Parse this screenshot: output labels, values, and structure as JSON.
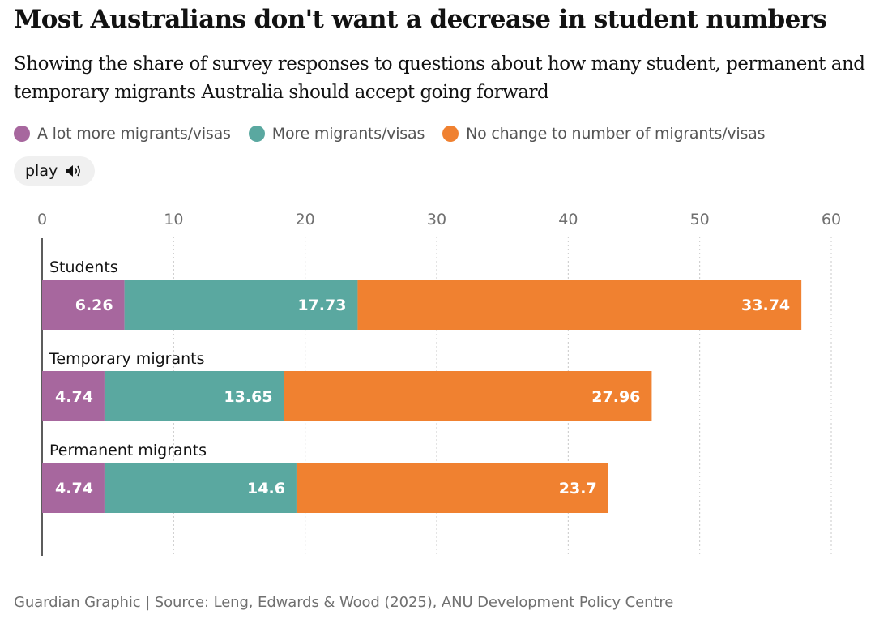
{
  "header": {
    "title": "Most Australians don't want a decrease in student numbers",
    "subtitle": "Showing the share of survey responses to questions about how many student, permanent and temporary migrants Australia should accept going forward"
  },
  "legend": [
    {
      "label": "A lot more migrants/visas",
      "color": "#a7679e"
    },
    {
      "label": "More migrants/visas",
      "color": "#5aa8a0"
    },
    {
      "label": "No change to number of migrants/visas",
      "color": "#f08130"
    }
  ],
  "controls": {
    "play_label": "play",
    "play_icon": "speaker-icon"
  },
  "chart_data": {
    "type": "bar",
    "orientation": "horizontal",
    "stacked": true,
    "categories": [
      "Students",
      "Temporary migrants",
      "Permanent migrants"
    ],
    "series": [
      {
        "name": "A lot more migrants/visas",
        "color": "#a7679e",
        "values": [
          6.26,
          4.74,
          4.74
        ]
      },
      {
        "name": "More migrants/visas",
        "color": "#5aa8a0",
        "values": [
          17.73,
          13.65,
          14.6
        ]
      },
      {
        "name": "No change to number of migrants/visas",
        "color": "#f08130",
        "values": [
          33.74,
          27.96,
          23.7
        ]
      }
    ],
    "xlim": [
      0,
      60
    ],
    "xticks": [
      0,
      10,
      20,
      30,
      40,
      50,
      60
    ],
    "tick_labels": [
      "0",
      "10",
      "20",
      "30",
      "40",
      "50",
      "60"
    ],
    "grid": true,
    "legend_position": "top",
    "axis_position": "top"
  },
  "footer": {
    "source": "Guardian Graphic | Source: Leng, Edwards & Wood (2025), ANU Development Policy Centre"
  }
}
